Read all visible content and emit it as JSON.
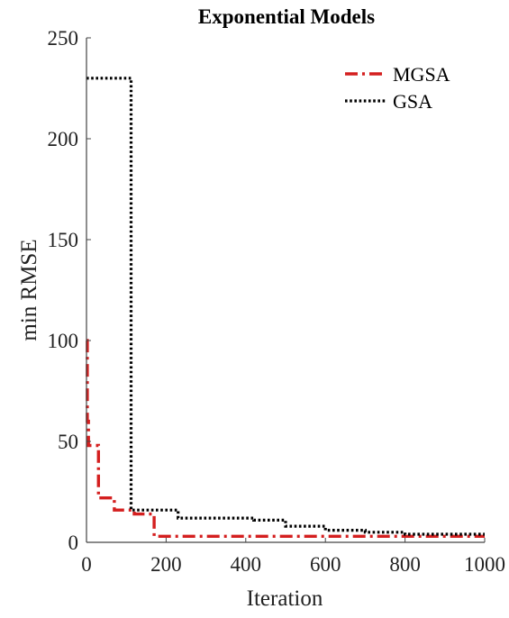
{
  "chart_data": {
    "type": "line",
    "title": "Exponential Models",
    "xlabel": "Iteration",
    "ylabel": "min RMSE",
    "xlim": [
      0,
      1000
    ],
    "ylim": [
      0,
      250
    ],
    "x_ticks": [
      "0",
      "200",
      "400",
      "600",
      "800",
      "1000"
    ],
    "y_ticks": [
      "0",
      "50",
      "100",
      "150",
      "200",
      "250"
    ],
    "grid": false,
    "legend_position": "top-right",
    "series": [
      {
        "name": "MGSA",
        "color": "#d41f1f",
        "line_style": "dash-dot",
        "x": [
          0,
          2,
          5,
          10,
          30,
          70,
          120,
          165,
          170,
          300,
          500,
          700,
          1000
        ],
        "y": [
          100,
          60,
          48,
          48,
          22,
          16,
          14,
          14,
          3,
          3,
          3,
          3,
          3
        ]
      },
      {
        "name": "GSA",
        "color": "#000000",
        "line_style": "dotted",
        "x": [
          0,
          110,
          112,
          200,
          230,
          300,
          420,
          500,
          600,
          700,
          800,
          1000
        ],
        "y": [
          230,
          230,
          16,
          16,
          12,
          12,
          11,
          8,
          6,
          5,
          4,
          4
        ]
      }
    ]
  }
}
